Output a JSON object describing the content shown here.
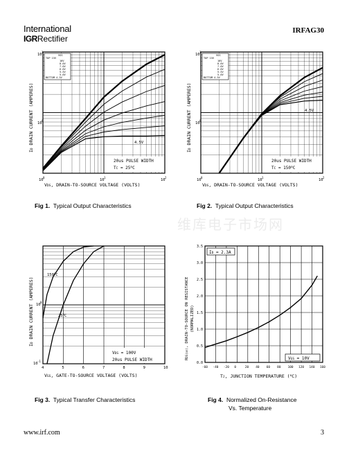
{
  "header": {
    "company_line1": "International",
    "company_brand": "IGR",
    "company_line2": "Rectifier",
    "part_number": "IRFAG30"
  },
  "watermark": "维库电子市场网",
  "captions": {
    "fig1_num": "Fig 1.",
    "fig1_text": "Typical Output Characteristics",
    "fig2_num": "Fig 2.",
    "fig2_text": "Typical Output Characteristics",
    "fig3_num": "Fig 3.",
    "fig3_text": "Typical Transfer Characteristics",
    "fig4_num": "Fig 4.",
    "fig4_text_1": "Normalized On-Resistance",
    "fig4_text_2": "Vs. Temperature"
  },
  "footer": {
    "url": "www.irf.com",
    "page": "3"
  },
  "chart_data": [
    {
      "type": "line",
      "id": "fig1",
      "ylabel": "I_D  DRAIN CURRENT (AMPERES)",
      "xlabel": "V_DS, DRAIN-TO-SOURCE VOLTAGE (VOLTS)",
      "x_scale": "log",
      "y_scale": "log",
      "xlim": [
        1,
        100
      ],
      "ylim": [
        0.1,
        10
      ],
      "x_ticks": [
        "10^0",
        "10^1",
        "10^2"
      ],
      "y_ticks": [
        "10^-1",
        "10^0",
        "10^1"
      ],
      "legend": [
        "VGS",
        "TOP 15V",
        "10V",
        "8.0V",
        "7.0V",
        "6.0V",
        "5.5V",
        "5.0V",
        "BOTTOM 4.5V"
      ],
      "annotations": [
        "4.5V",
        "20us PULSE WIDTH",
        "T_C = 25°C"
      ],
      "series": [
        {
          "name": "TOP",
          "x": [
            1,
            2,
            5,
            10,
            20,
            50,
            100
          ],
          "y": [
            0.12,
            0.28,
            0.8,
            1.8,
            3.3,
            6.3,
            9.0
          ]
        },
        {
          "name": "4.5V",
          "x": [
            1,
            2,
            5,
            10,
            20,
            50,
            100
          ],
          "y": [
            0.11,
            0.22,
            0.37,
            0.4,
            0.41,
            0.41,
            0.42
          ]
        }
      ]
    },
    {
      "type": "line",
      "id": "fig2",
      "ylabel": "I_D  DRAIN CURRENT (AMPERES)",
      "xlabel": "V_DS, DRAIN-TO-SOURCE VOLTAGE (VOLTS)",
      "x_scale": "log",
      "y_scale": "log",
      "xlim": [
        1,
        100
      ],
      "ylim": [
        0.1,
        10
      ],
      "x_ticks": [
        "10^0",
        "10^1",
        "10^2"
      ],
      "y_ticks": [
        "10^-1",
        "10^0",
        "10^1"
      ],
      "legend": [
        "VGS",
        "TOP 15V",
        "10V",
        "8.0V",
        "7.0V",
        "6.0V",
        "5.5V",
        "5.0V",
        "BOTTOM 4.5V"
      ],
      "annotations": [
        "4.5V",
        "20us PULSE WIDTH",
        "T_C = 150°C"
      ],
      "series": [
        {
          "name": "TOP",
          "x": [
            2,
            5,
            10,
            20,
            50,
            100
          ],
          "y": [
            0.1,
            0.38,
            0.95,
            1.9,
            3.8,
            5.5
          ]
        },
        {
          "name": "4.5V",
          "x": [
            2,
            5,
            10,
            20,
            50,
            100
          ],
          "y": [
            0.1,
            0.38,
            0.9,
            1.35,
            1.55,
            1.6
          ]
        }
      ]
    },
    {
      "type": "line",
      "id": "fig3",
      "ylabel": "I_D  DRAIN CURRENT (AMPERES)",
      "xlabel": "V_GS, GATE-TO-SOURCE VOLTAGE (VOLTS)",
      "y_scale": "log",
      "xlim": [
        4,
        10
      ],
      "ylim": [
        0.1,
        10
      ],
      "x_ticks": [
        "4",
        "5",
        "6",
        "7",
        "8",
        "9",
        "10"
      ],
      "y_ticks": [
        "10^-1",
        "10^0",
        "10^1"
      ],
      "annotations": [
        "V_DS = 100V",
        "20us PULSE WIDTH"
      ],
      "series": [
        {
          "name": "150°C",
          "x": [
            4.0,
            4.2,
            4.5,
            5.0,
            5.5,
            6.0,
            6.5
          ],
          "y": [
            0.6,
            1.5,
            3.0,
            5.5,
            8.0,
            9.6,
            10
          ]
        },
        {
          "name": "25°C",
          "x": [
            4.2,
            4.5,
            5.0,
            5.5,
            6.0,
            6.5,
            7.0
          ],
          "y": [
            0.1,
            0.3,
            1.0,
            2.6,
            5.0,
            8.0,
            10
          ]
        }
      ]
    },
    {
      "type": "line",
      "id": "fig4",
      "ylabel": "R_DS(on), DRAIN-TO-SOURCE ON RESISTANCE (NORMALIZED)",
      "xlabel": "T_J, JUNCTION TEMPERATURE (°C)",
      "xlim": [
        -60,
        160
      ],
      "ylim": [
        0.0,
        3.5
      ],
      "x_ticks": [
        "-60",
        "-40",
        "-20",
        "0",
        "20",
        "40",
        "60",
        "80",
        "100",
        "120",
        "140",
        "160"
      ],
      "y_ticks": [
        "0.0",
        "0.5",
        "1.0",
        "1.5",
        "2.0",
        "2.5",
        "3.0",
        "3.5"
      ],
      "annotations": [
        "I_D = 2.3A",
        "V_GS = 10V"
      ],
      "series": [
        {
          "name": "R_DS(on)",
          "x": [
            -60,
            -40,
            -20,
            0,
            20,
            40,
            60,
            80,
            100,
            120,
            140,
            150
          ],
          "y": [
            0.45,
            0.55,
            0.65,
            0.77,
            0.9,
            1.05,
            1.22,
            1.42,
            1.65,
            1.92,
            2.32,
            2.6
          ]
        }
      ]
    }
  ]
}
